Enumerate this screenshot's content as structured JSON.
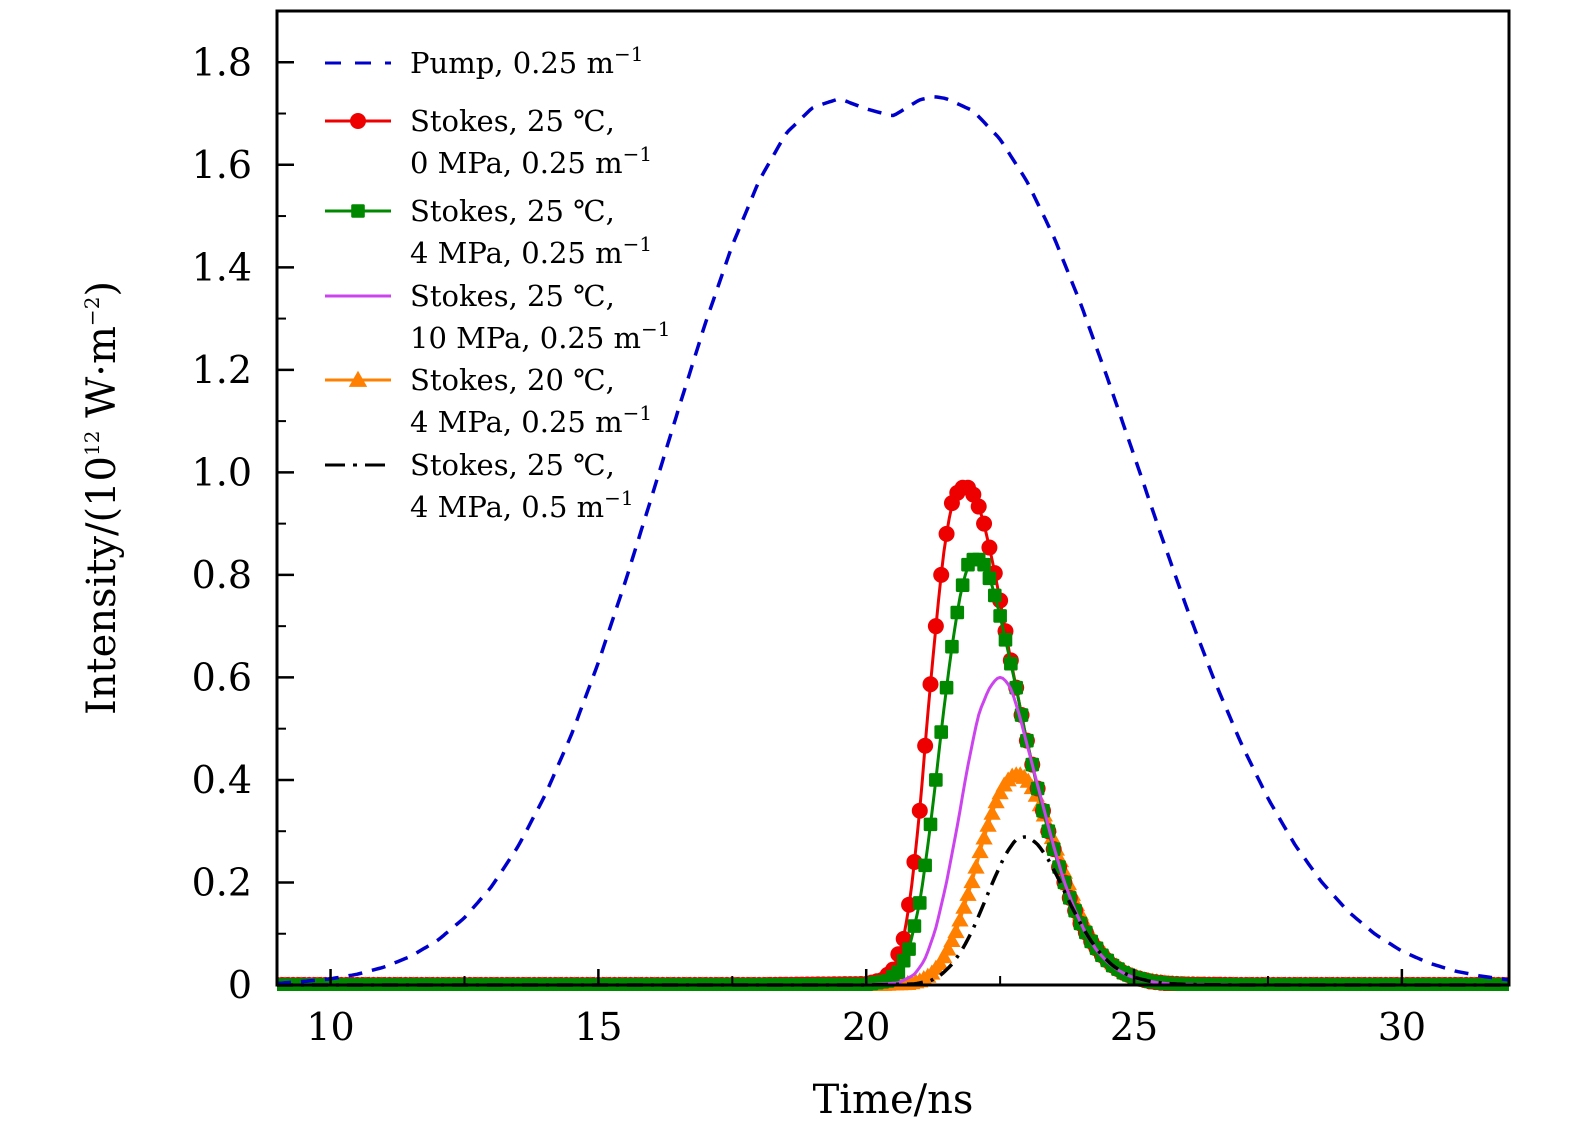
{
  "chart_data": {
    "type": "line",
    "title": "",
    "xlabel": "Time/ns",
    "ylabel": "Intensity/(10^12 W·m^-2)",
    "ylabel_parts": {
      "main": "Intensity/(10",
      "exp": "12",
      "unit": " W·m",
      "unit_exp": "−2",
      "close": ")"
    },
    "xlim": [
      9,
      32
    ],
    "ylim": [
      0,
      1.9
    ],
    "x_ticks_major": [
      10,
      15,
      20,
      25,
      30
    ],
    "x_tick_labels": [
      "10",
      "15",
      "20",
      "25",
      "30"
    ],
    "x_ticks_minor": [
      12.5,
      17.5,
      22.5,
      27.5
    ],
    "y_ticks_major": [
      0,
      0.2,
      0.4,
      0.6,
      0.8,
      1.0,
      1.2,
      1.4,
      1.6,
      1.8
    ],
    "y_tick_labels": [
      "0",
      "0.2",
      "0.4",
      "0.6",
      "0.8",
      "1.0",
      "1.2",
      "1.4",
      "1.6",
      "1.8"
    ],
    "y_ticks_minor": [
      0.1,
      0.3,
      0.5,
      0.7,
      0.9,
      1.1,
      1.3,
      1.5,
      1.7
    ],
    "grid": false,
    "legend_position": "top-left",
    "series": [
      {
        "name": "Pump, 0.25 m^-1",
        "legend_lines": [
          {
            "text": "Pump, 0.25 m",
            "sup": "−1"
          }
        ],
        "color": "#0000cc",
        "style": "dashed",
        "marker": "none",
        "x": [
          9,
          9.5,
          10,
          10.5,
          11,
          11.5,
          12,
          12.5,
          13,
          13.5,
          14,
          14.5,
          15,
          15.5,
          16,
          16.5,
          17,
          17.5,
          18,
          18.5,
          19,
          19.5,
          20,
          20.5,
          21,
          21.27,
          21.5,
          22,
          22.5,
          23,
          23.5,
          24,
          24.5,
          25,
          25.5,
          26,
          26.5,
          27,
          27.5,
          28,
          28.5,
          29,
          29.5,
          30,
          30.5,
          31,
          31.5,
          32
        ],
        "y": [
          0.003,
          0.007,
          0.012,
          0.021,
          0.035,
          0.056,
          0.087,
          0.131,
          0.191,
          0.27,
          0.369,
          0.489,
          0.629,
          0.786,
          0.954,
          1.125,
          1.292,
          1.443,
          1.569,
          1.661,
          1.712,
          1.729,
          1.709,
          1.695,
          1.727,
          1.733,
          1.729,
          1.705,
          1.65,
          1.568,
          1.46,
          1.33,
          1.185,
          1.033,
          0.879,
          0.731,
          0.594,
          0.471,
          0.364,
          0.274,
          0.201,
          0.143,
          0.099,
          0.066,
          0.043,
          0.027,
          0.017,
          0.01
        ]
      },
      {
        "name": "Stokes, 25 ℃, 0 MPa, 0.25 m^-1",
        "legend_lines": [
          {
            "text": "Stokes, 25 ℃,",
            "sup": ""
          },
          {
            "text": "0 MPa, 0.25 m",
            "sup": "−1"
          }
        ],
        "color": "#ee0000",
        "style": "solid",
        "marker": "circle",
        "x": [
          9,
          12,
          15,
          18,
          20,
          20.3,
          20.5,
          20.7,
          20.85,
          21.0,
          21.15,
          21.3,
          21.45,
          21.6,
          21.75,
          21.9,
          22.05,
          22.2,
          22.35,
          22.5,
          22.65,
          22.8,
          22.95,
          23.1,
          23.25,
          23.4,
          23.6,
          23.8,
          24.0,
          24.2,
          24.4,
          24.6,
          24.8,
          25.0,
          25.3,
          25.6,
          26,
          27,
          28,
          29,
          30,
          31,
          32
        ],
        "y": [
          0,
          0,
          0,
          0,
          0.002,
          0.01,
          0.03,
          0.09,
          0.19,
          0.34,
          0.53,
          0.7,
          0.85,
          0.94,
          0.97,
          0.97,
          0.95,
          0.9,
          0.83,
          0.75,
          0.66,
          0.58,
          0.5,
          0.43,
          0.36,
          0.3,
          0.23,
          0.17,
          0.12,
          0.085,
          0.058,
          0.038,
          0.024,
          0.015,
          0.007,
          0.003,
          0.001,
          0,
          0,
          0,
          0,
          0,
          0
        ]
      },
      {
        "name": "Stokes, 25 ℃, 4 MPa, 0.25 m^-1",
        "legend_lines": [
          {
            "text": "Stokes, 25 ℃,",
            "sup": ""
          },
          {
            "text": "4 MPa, 0.25 m",
            "sup": "−1"
          }
        ],
        "color": "#008800",
        "style": "solid",
        "marker": "square",
        "x": [
          9,
          12,
          15,
          18,
          20,
          20.4,
          20.6,
          20.8,
          21.0,
          21.15,
          21.3,
          21.45,
          21.6,
          21.75,
          21.9,
          22.05,
          22.2,
          22.35,
          22.5,
          22.65,
          22.8,
          22.95,
          23.1,
          23.25,
          23.4,
          23.6,
          23.8,
          24.0,
          24.2,
          24.4,
          24.6,
          24.8,
          25.0,
          25.3,
          25.6,
          26,
          27,
          28,
          29,
          30,
          31,
          32
        ],
        "y": [
          0,
          0,
          0,
          0,
          0.001,
          0.008,
          0.025,
          0.07,
          0.16,
          0.27,
          0.4,
          0.54,
          0.66,
          0.76,
          0.82,
          0.835,
          0.82,
          0.78,
          0.72,
          0.65,
          0.58,
          0.5,
          0.43,
          0.36,
          0.3,
          0.23,
          0.17,
          0.12,
          0.085,
          0.058,
          0.038,
          0.024,
          0.015,
          0.007,
          0.003,
          0.001,
          0,
          0,
          0,
          0,
          0,
          0
        ]
      },
      {
        "name": "Stokes, 25 ℃, 10 MPa, 0.25 m^-1",
        "legend_lines": [
          {
            "text": "Stokes, 25 ℃,",
            "sup": ""
          },
          {
            "text": "10 MPa, 0.25 m",
            "sup": "−1"
          }
        ],
        "color": "#cc44ee",
        "style": "solid",
        "marker": "none",
        "x": [
          9,
          12,
          15,
          18,
          20,
          20.6,
          20.9,
          21.1,
          21.3,
          21.5,
          21.7,
          21.9,
          22.1,
          22.3,
          22.45,
          22.55,
          22.7,
          22.85,
          23.0,
          23.15,
          23.3,
          23.5,
          23.7,
          23.9,
          24.1,
          24.3,
          24.5,
          24.7,
          24.9,
          25.1,
          25.4,
          25.7,
          26,
          27,
          28,
          29,
          30,
          31,
          32
        ],
        "y": [
          0,
          0,
          0,
          0,
          0,
          0.004,
          0.02,
          0.05,
          0.11,
          0.2,
          0.31,
          0.43,
          0.53,
          0.58,
          0.6,
          0.6,
          0.58,
          0.53,
          0.47,
          0.41,
          0.35,
          0.27,
          0.2,
          0.145,
          0.1,
          0.068,
          0.045,
          0.029,
          0.018,
          0.011,
          0.005,
          0.002,
          0.001,
          0,
          0,
          0,
          0,
          0,
          0
        ]
      },
      {
        "name": "Stokes, 20 ℃, 4 MPa, 0.25 m^-1",
        "legend_lines": [
          {
            "text": "Stokes, 20 ℃,",
            "sup": ""
          },
          {
            "text": "4 MPa, 0.25 m",
            "sup": "−1"
          }
        ],
        "color": "#ff8000",
        "style": "solid",
        "marker": "triangle",
        "x": [
          9,
          12,
          15,
          18,
          20,
          20.8,
          21.0,
          21.2,
          21.4,
          21.55,
          21.7,
          21.85,
          22.0,
          22.15,
          22.3,
          22.45,
          22.6,
          22.75,
          22.9,
          23.05,
          23.2,
          23.35,
          23.5,
          23.65,
          23.8,
          23.95,
          24.1,
          24.25,
          24.4,
          24.6,
          24.8,
          25.0,
          25.2,
          25.5,
          25.8,
          26.2,
          27,
          28,
          29,
          30,
          31,
          32
        ],
        "y": [
          0,
          0,
          0,
          0,
          0,
          0.003,
          0.008,
          0.02,
          0.045,
          0.075,
          0.11,
          0.16,
          0.21,
          0.27,
          0.32,
          0.365,
          0.395,
          0.41,
          0.41,
          0.395,
          0.365,
          0.325,
          0.28,
          0.235,
          0.19,
          0.15,
          0.115,
          0.088,
          0.066,
          0.043,
          0.027,
          0.017,
          0.01,
          0.005,
          0.002,
          0.001,
          0,
          0,
          0,
          0,
          0,
          0
        ]
      },
      {
        "name": "Stokes, 25 ℃, 4 MPa, 0.5 m^-1",
        "legend_lines": [
          {
            "text": "Stokes, 25 ℃,",
            "sup": ""
          },
          {
            "text": "4 MPa, 0.5 m",
            "sup": "−1"
          }
        ],
        "color": "#000000",
        "style": "dashdot",
        "marker": "none",
        "x": [
          9,
          12,
          15,
          18,
          20,
          20.9,
          21.2,
          21.4,
          21.6,
          21.8,
          22.0,
          22.2,
          22.4,
          22.6,
          22.8,
          23.0,
          23.2,
          23.4,
          23.6,
          23.8,
          24.0,
          24.2,
          24.4,
          24.6,
          24.8,
          25.0,
          25.3,
          25.6,
          26,
          27,
          28,
          29,
          30,
          31,
          32
        ],
        "y": [
          0,
          0,
          0,
          0,
          0,
          0.002,
          0.008,
          0.02,
          0.04,
          0.07,
          0.11,
          0.16,
          0.21,
          0.255,
          0.285,
          0.29,
          0.275,
          0.245,
          0.205,
          0.16,
          0.12,
          0.085,
          0.058,
          0.038,
          0.024,
          0.015,
          0.007,
          0.003,
          0.001,
          0,
          0,
          0,
          0,
          0,
          0
        ]
      }
    ]
  }
}
